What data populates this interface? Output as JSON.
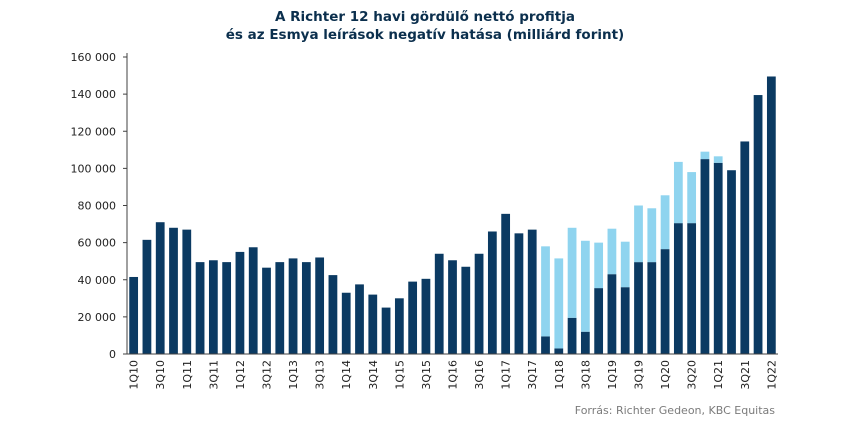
{
  "chart_data": {
    "type": "bar",
    "stacked": true,
    "title_line1": "A Richter 12 havi gördülő nettó profitja",
    "title_line2": "és az Esmya leírások negatív hatása (milliárd forint)",
    "source": "Forrás: Richter Gedeon, KBC Equitas",
    "ylim": [
      0,
      160000
    ],
    "yticks": [
      "0",
      "20 000",
      "40 000",
      "60 000",
      "80 000",
      "100 000",
      "120 000",
      "140 000",
      "160 000"
    ],
    "grid": false,
    "colors": {
      "net_profit": "#0b3a62",
      "esmya_effect": "#8fd4ef"
    },
    "categories": [
      "1Q10",
      "2Q10",
      "3Q10",
      "4Q10",
      "1Q11",
      "2Q11",
      "3Q11",
      "4Q11",
      "1Q12",
      "2Q12",
      "3Q12",
      "4Q12",
      "1Q13",
      "2Q13",
      "3Q13",
      "4Q13",
      "1Q14",
      "2Q14",
      "3Q14",
      "4Q14",
      "1Q15",
      "2Q15",
      "3Q15",
      "4Q15",
      "1Q16",
      "2Q16",
      "3Q16",
      "4Q16",
      "1Q17",
      "2Q17",
      "3Q17",
      "4Q17",
      "1Q18",
      "2Q18",
      "3Q18",
      "4Q18",
      "1Q19",
      "2Q19",
      "3Q19",
      "4Q19",
      "1Q20",
      "2Q20",
      "3Q20",
      "4Q20",
      "1Q21",
      "2Q21",
      "3Q21",
      "4Q21",
      "1Q22"
    ],
    "x_tick_labels": [
      "1Q10",
      "3Q10",
      "1Q11",
      "3Q11",
      "1Q12",
      "3Q12",
      "1Q13",
      "3Q13",
      "1Q14",
      "3Q14",
      "1Q15",
      "3Q15",
      "1Q16",
      "3Q16",
      "1Q17",
      "3Q17",
      "1Q18",
      "3Q18",
      "1Q19",
      "3Q19",
      "1Q20",
      "3Q20",
      "1Q21",
      "3Q21",
      "1Q22"
    ],
    "series": [
      {
        "values": [
          41500,
          61500,
          71000,
          68000,
          67000,
          49500,
          50500,
          49500,
          55000,
          57500,
          46500,
          49500,
          51500,
          49500,
          52000,
          42500,
          33000,
          37500,
          32000,
          25000,
          30000,
          39000,
          40500,
          54000,
          50500,
          47000,
          54000,
          66000,
          75500,
          65000,
          67000,
          9500,
          3000,
          19500,
          12000,
          35500,
          43000,
          36000,
          49500,
          49500,
          56500,
          70500,
          70500,
          105000,
          103000,
          99000,
          114500,
          139500,
          149500
        ]
      },
      {
        "values": [
          0,
          0,
          0,
          0,
          0,
          0,
          0,
          0,
          0,
          0,
          0,
          0,
          0,
          0,
          0,
          0,
          0,
          0,
          0,
          0,
          0,
          0,
          0,
          0,
          0,
          0,
          0,
          0,
          0,
          0,
          0,
          48500,
          48500,
          48500,
          49000,
          24500,
          24500,
          24500,
          30500,
          29000,
          29000,
          33000,
          27500,
          4000,
          3500,
          0,
          0,
          0,
          0
        ]
      }
    ]
  }
}
